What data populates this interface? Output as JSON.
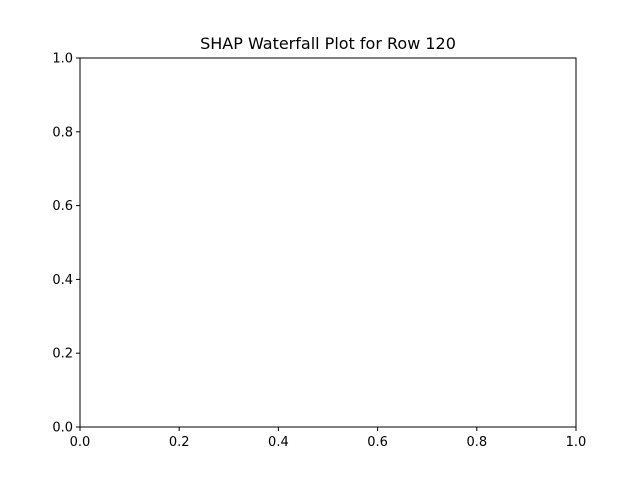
{
  "chart_data": {
    "type": "bar",
    "title": "SHAP Waterfall Plot for Row 120",
    "xlabel": "",
    "ylabel": "",
    "xlim": [
      0.0,
      1.0
    ],
    "ylim": [
      0.0,
      1.0
    ],
    "x_ticks": [
      "0.0",
      "0.2",
      "0.4",
      "0.6",
      "0.8",
      "1.0"
    ],
    "y_ticks": [
      "0.0",
      "0.2",
      "0.4",
      "0.6",
      "0.8",
      "1.0"
    ],
    "categories": [],
    "values": [],
    "grid": false,
    "legend": "none"
  },
  "colors": {
    "axis": "#000000",
    "background": "#ffffff"
  }
}
